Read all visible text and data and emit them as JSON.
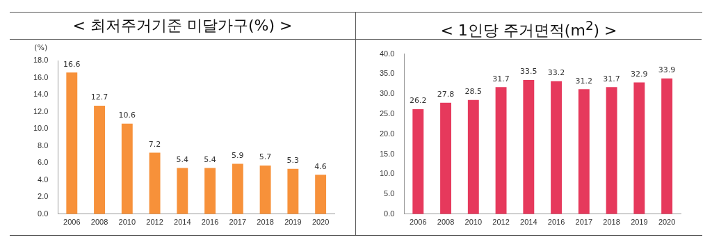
{
  "chart_data": [
    {
      "type": "bar",
      "title": "< 최저주거기준 미달가구(%) >",
      "ylabel": "(%)",
      "categories": [
        "2006",
        "2008",
        "2010",
        "2012",
        "2014",
        "2016",
        "2017",
        "2018",
        "2019",
        "2020"
      ],
      "values": [
        16.6,
        12.7,
        10.6,
        7.2,
        5.4,
        5.4,
        5.9,
        5.7,
        5.3,
        4.6
      ],
      "color": "#f7913a",
      "ylim": [
        0,
        18
      ],
      "yticks": [
        {
          "value": 0,
          "label": "0.0"
        },
        {
          "value": 2,
          "label": "2.0"
        },
        {
          "value": 4,
          "label": "4.0"
        },
        {
          "value": 6,
          "label": "6.0"
        },
        {
          "value": 8,
          "label": "8.0"
        },
        {
          "value": 10,
          "label": "10.0"
        },
        {
          "value": 12,
          "label": "12.0"
        },
        {
          "value": 14,
          "label": "14.0"
        },
        {
          "value": 16,
          "label": "16.0"
        },
        {
          "value": 18,
          "label": "18.0"
        }
      ],
      "data_labels": true,
      "grid": false,
      "legend": false
    },
    {
      "type": "bar",
      "title": "< 1인당 주거면적(m$^{2}$) >",
      "categories": [
        "2006",
        "2008",
        "2010",
        "2012",
        "2014",
        "2016",
        "2017",
        "2018",
        "2019",
        "2020"
      ],
      "values": [
        26.2,
        27.8,
        28.5,
        31.7,
        33.5,
        33.2,
        31.2,
        31.7,
        32.9,
        33.9
      ],
      "color": "#e6395c",
      "ylim": [
        0,
        40
      ],
      "yticks": [
        {
          "value": 0,
          "label": "0.0"
        },
        {
          "value": 5,
          "label": "5.0"
        },
        {
          "value": 10,
          "label": "10.0"
        },
        {
          "value": 15,
          "label": "15.0"
        },
        {
          "value": 20,
          "label": "20.0"
        },
        {
          "value": 25,
          "label": "25.0"
        },
        {
          "value": 30,
          "label": "30.0"
        },
        {
          "value": 35,
          "label": "35.0"
        },
        {
          "value": 40,
          "label": "40.0"
        }
      ],
      "data_labels": true,
      "grid": false,
      "legend": false
    }
  ]
}
